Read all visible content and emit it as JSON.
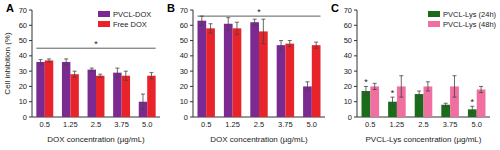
{
  "chart_data": [
    {
      "type": "bar",
      "title": "A",
      "y_label": "Cell inhibition (%)",
      "x_label": "DOX concentration (µg/mL)",
      "categories": [
        "0.5",
        "1.25",
        "2.5",
        "3.75",
        "5.0"
      ],
      "series": [
        {
          "name": "PVCL-DOX",
          "color": "#7b2a91",
          "values": [
            36,
            36,
            31,
            29,
            10
          ],
          "errors": [
            1.5,
            2,
            1,
            3,
            5
          ]
        },
        {
          "name": "Free DOX",
          "color": "#e8232a",
          "values": [
            37,
            28,
            27,
            27,
            27
          ],
          "errors": [
            1,
            2,
            1,
            3,
            2
          ]
        }
      ],
      "ylim": [
        0,
        70
      ],
      "yticks": [
        0,
        10,
        20,
        30,
        40,
        50,
        60,
        70
      ],
      "legend": "upper right",
      "annotations": [
        {
          "text": "*",
          "y": 45
        }
      ]
    },
    {
      "type": "bar",
      "title": "B",
      "x_label": "DOX concentration (µg/mL)",
      "categories": [
        "0.5",
        "1.25",
        "2.5",
        "3.75",
        "5.0"
      ],
      "series": [
        {
          "name": "PVCL-DOX",
          "color": "#7b2a91",
          "values": [
            63,
            61,
            62,
            47,
            20
          ],
          "errors": [
            3,
            4,
            2,
            3,
            3
          ]
        },
        {
          "name": "Free DOX",
          "color": "#e8232a",
          "values": [
            58,
            58,
            56,
            48,
            47
          ],
          "errors": [
            3,
            4,
            8,
            2,
            2
          ]
        }
      ],
      "ylim": [
        0,
        70
      ],
      "yticks": [
        0,
        10,
        20,
        30,
        40,
        50,
        60,
        70
      ],
      "annotations": [
        {
          "text": "*",
          "y": 66
        }
      ]
    },
    {
      "type": "bar",
      "title": "C",
      "x_label": "PVCL-Lys concentration (µg/mL)",
      "categories": [
        "0.5",
        "1.25",
        "2.5",
        "3.75",
        "5.0"
      ],
      "series": [
        {
          "name": "PVCL-Lys (24h)",
          "color": "#1a6b1a",
          "values": [
            17,
            10,
            15,
            8,
            5
          ],
          "errors": [
            3,
            3,
            2,
            1,
            2
          ],
          "significance": [
            "*",
            "*",
            null,
            null,
            "*"
          ]
        },
        {
          "name": "PVCL-Lys (48h)",
          "color": "#f06ea0",
          "values": [
            20,
            20,
            20,
            20,
            18
          ],
          "errors": [
            2,
            7,
            3,
            7,
            2
          ]
        }
      ],
      "ylim": [
        0,
        70
      ],
      "yticks": [
        0,
        10,
        20,
        30,
        40,
        50,
        60,
        70
      ],
      "legend": "upper right"
    }
  ]
}
